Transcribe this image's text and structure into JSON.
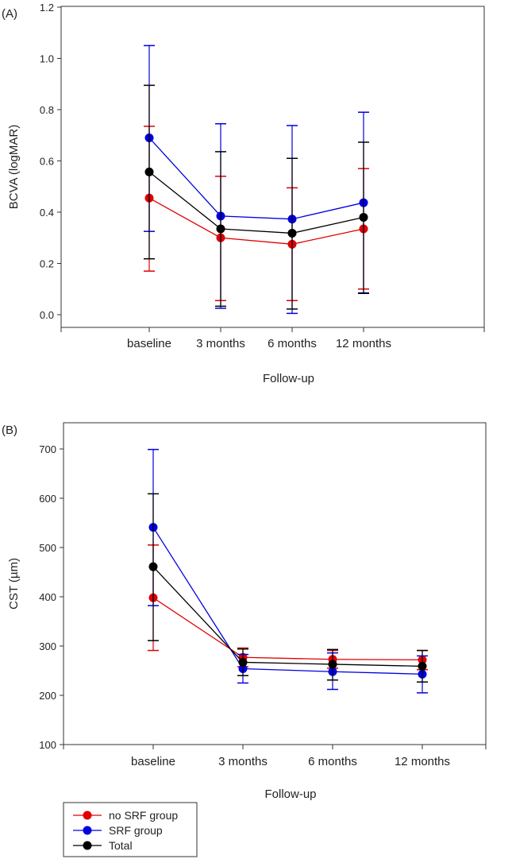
{
  "chart_data": [
    {
      "type": "line",
      "panel_label": "(A)",
      "title": "",
      "xlabel": "Follow-up",
      "ylabel": "BCVA (logMAR)",
      "categories": [
        "baseline",
        "3 months",
        "6 months",
        "12 months"
      ],
      "ylim": [
        0.0,
        1.2
      ],
      "yticks": [
        "0.0",
        "0.2",
        "0.4",
        "0.6",
        "0.8",
        "1.0",
        "1.2"
      ],
      "grid": false,
      "series": [
        {
          "name": "no SRF group",
          "color": "#e00000",
          "values": [
            0.455,
            0.3,
            0.275,
            0.335
          ],
          "err_low": [
            0.17,
            0.055,
            0.055,
            0.1
          ],
          "err_high": [
            0.735,
            0.54,
            0.495,
            0.57
          ]
        },
        {
          "name": "SRF group",
          "color": "#0000e0",
          "values": [
            0.69,
            0.385,
            0.373,
            0.437
          ],
          "err_low": [
            0.325,
            0.025,
            0.005,
            0.085
          ],
          "err_high": [
            1.05,
            0.745,
            0.738,
            0.79
          ]
        },
        {
          "name": "Total",
          "color": "#000000",
          "values": [
            0.557,
            0.335,
            0.318,
            0.38
          ],
          "err_low": [
            0.218,
            0.033,
            0.022,
            0.083
          ],
          "err_high": [
            0.895,
            0.636,
            0.61,
            0.673
          ]
        }
      ]
    },
    {
      "type": "line",
      "panel_label": "(B)",
      "title": "",
      "xlabel": "Follow-up",
      "ylabel": "CST (µm)",
      "categories": [
        "baseline",
        "3 months",
        "6 months",
        "12 months"
      ],
      "ylim": [
        100,
        700
      ],
      "yticks": [
        "100",
        "200",
        "300",
        "400",
        "500",
        "600",
        "700"
      ],
      "grid": false,
      "legend_position": "bottom-left",
      "series": [
        {
          "name": "no SRF group",
          "color": "#e00000",
          "values": [
            398,
            277,
            273,
            272
          ],
          "err_low": [
            291,
            258,
            255,
            252
          ],
          "err_high": [
            505,
            296,
            291,
            291
          ]
        },
        {
          "name": "SRF group",
          "color": "#0000e0",
          "values": [
            541,
            254,
            248,
            243
          ],
          "err_low": [
            382,
            225,
            212,
            205
          ],
          "err_high": [
            699,
            283,
            286,
            280
          ]
        },
        {
          "name": "Total",
          "color": "#000000",
          "values": [
            461,
            267,
            263,
            259
          ],
          "err_low": [
            311,
            240,
            231,
            227
          ],
          "err_high": [
            609,
            294,
            293,
            291
          ]
        }
      ]
    }
  ]
}
